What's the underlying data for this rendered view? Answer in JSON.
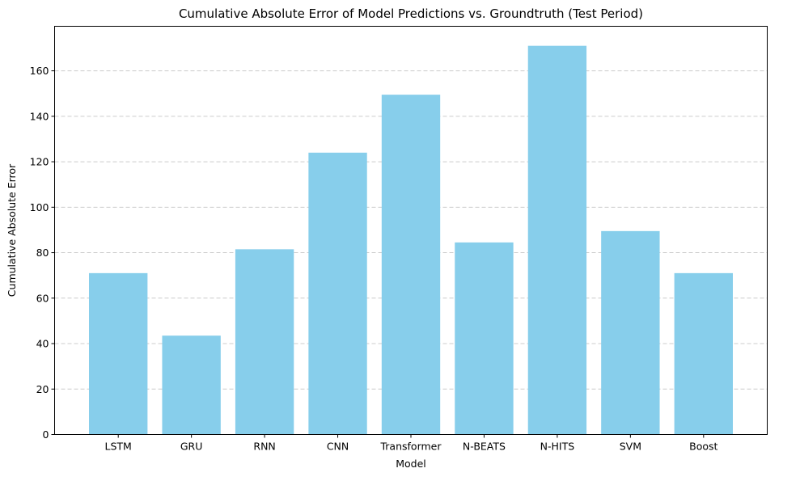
{
  "chart_data": {
    "type": "bar",
    "title": "Cumulative Absolute Error of Model Predictions vs. Groundtruth (Test Period)",
    "xlabel": "Model",
    "ylabel": "Cumulative Absolute Error",
    "categories": [
      "LSTM",
      "GRU",
      "RNN",
      "CNN",
      "Transformer",
      "N-BEATS",
      "N-HITS",
      "SVM",
      "Boost"
    ],
    "values": [
      71,
      43.5,
      81.5,
      124,
      149.5,
      84.5,
      171,
      89.5,
      71
    ],
    "ylim": [
      0,
      179.6
    ],
    "yticks": [
      0,
      20,
      40,
      60,
      80,
      100,
      120,
      140,
      160
    ],
    "grid": "y-dashed",
    "bar_color": "#87ceeb"
  }
}
